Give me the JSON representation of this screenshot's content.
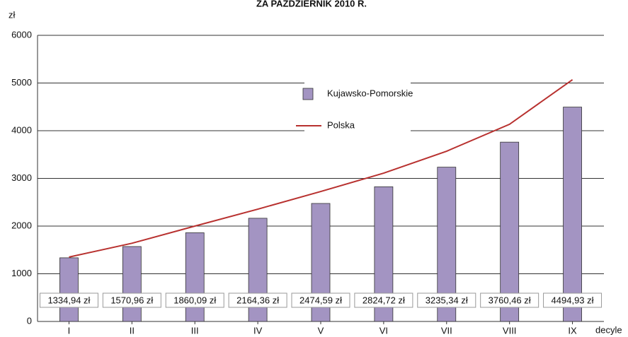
{
  "chart_data": {
    "type": "bar",
    "title": "ZA PAŹDZIERNIK 2010 R.",
    "y_label": "zł",
    "x_label": "decyle",
    "categories": [
      "I",
      "II",
      "III",
      "IV",
      "V",
      "VI",
      "VII",
      "VIII",
      "IX"
    ],
    "series": [
      {
        "name": "Kujawsko-Pomorskie",
        "type": "bar",
        "color": "#a394c2",
        "values": [
          1334.94,
          1570.96,
          1860.09,
          2164.36,
          2474.59,
          2824.72,
          3235.34,
          3760.46,
          4494.93
        ],
        "value_labels": [
          "1334,94 zł",
          "1570,96 zł",
          "1860,09 zł",
          "2164,36 zł",
          "2474,59 zł",
          "2824,72 zł",
          "3235,34 zł",
          "3760,46 zł",
          "4494,93 zł"
        ]
      },
      {
        "name": "Polska",
        "type": "line",
        "color": "#b8312f",
        "values": [
          1350,
          1640,
          2000,
          2355,
          2725,
          3110,
          3570,
          4135,
          5070
        ]
      }
    ],
    "ylim": [
      0,
      6000
    ],
    "yticks": [
      0,
      1000,
      2000,
      3000,
      4000,
      5000,
      6000
    ],
    "grid": true
  }
}
